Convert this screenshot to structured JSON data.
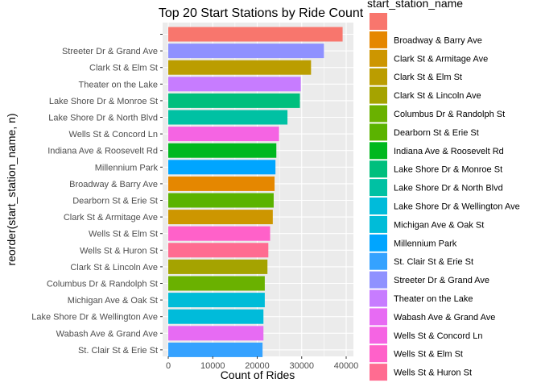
{
  "chart_data": {
    "type": "bar",
    "orientation": "horizontal",
    "title": "Top 20 Start Stations by Ride Count",
    "xlabel": "Count of Rides",
    "ylabel": "reorder(start_station_name, n)",
    "xlim": [
      0,
      40000
    ],
    "xticks": [
      0,
      10000,
      20000,
      30000,
      40000
    ],
    "grid": true,
    "legend": {
      "title": "start_station_name",
      "position": "right"
    },
    "categories": [
      "",
      "Streeter Dr & Grand Ave",
      "Clark St & Elm St",
      "Theater on the Lake",
      "Lake Shore Dr & Monroe St",
      "Lake Shore Dr & North Blvd",
      "Wells St & Concord Ln",
      "Indiana Ave & Roosevelt Rd",
      "Millennium Park",
      "Broadway & Barry Ave",
      "Dearborn St & Erie St",
      "Clark St & Armitage Ave",
      "Wells St & Elm St",
      "Wells St & Huron St",
      "Clark St & Lincoln Ave",
      "Columbus Dr & Randolph St",
      "Michigan Ave & Oak St",
      "Lake Shore Dr & Wellington Ave",
      "Wabash Ave & Grand Ave",
      "St. Clair St & Erie St"
    ],
    "values": [
      39200,
      35000,
      32100,
      29800,
      29600,
      26800,
      24900,
      24300,
      24100,
      23900,
      23700,
      23500,
      22900,
      22500,
      22300,
      21700,
      21700,
      21400,
      21400,
      21200
    ],
    "colors": [
      "#F8766D",
      "#8F91FF",
      "#BB9D00",
      "#C77CFF",
      "#00BF7D",
      "#00C1A3",
      "#F564E3",
      "#00B81F",
      "#00A5FF",
      "#E58700",
      "#5BB300",
      "#CD9600",
      "#FF61C9",
      "#FF6C91",
      "#A5A300",
      "#6AB100",
      "#00BCD8",
      "#00BBDA",
      "#E76BF3",
      "#35A2FF"
    ],
    "legend_entries": [
      {
        "label": "",
        "color": "#F8766D"
      },
      {
        "label": "Broadway & Barry Ave",
        "color": "#E58700"
      },
      {
        "label": "Clark St & Armitage Ave",
        "color": "#CD9600"
      },
      {
        "label": "Clark St & Elm St",
        "color": "#BB9D00"
      },
      {
        "label": "Clark St & Lincoln Ave",
        "color": "#A5A300"
      },
      {
        "label": "Columbus Dr & Randolph St",
        "color": "#6AB100"
      },
      {
        "label": "Dearborn St & Erie St",
        "color": "#5BB300"
      },
      {
        "label": "Indiana Ave & Roosevelt Rd",
        "color": "#00B81F"
      },
      {
        "label": "Lake Shore Dr & Monroe St",
        "color": "#00BF7D"
      },
      {
        "label": "Lake Shore Dr & North Blvd",
        "color": "#00C1A3"
      },
      {
        "label": "Lake Shore Dr & Wellington Ave",
        "color": "#00BBDA"
      },
      {
        "label": "Michigan Ave & Oak St",
        "color": "#00BCD8"
      },
      {
        "label": "Millennium Park",
        "color": "#00A5FF"
      },
      {
        "label": "St. Clair St & Erie St",
        "color": "#35A2FF"
      },
      {
        "label": "Streeter Dr & Grand Ave",
        "color": "#8F91FF"
      },
      {
        "label": "Theater on the Lake",
        "color": "#C77CFF"
      },
      {
        "label": "Wabash Ave & Grand Ave",
        "color": "#E76BF3"
      },
      {
        "label": "Wells St & Concord Ln",
        "color": "#F564E3"
      },
      {
        "label": "Wells St & Elm St",
        "color": "#FF61C9"
      },
      {
        "label": "Wells St & Huron St",
        "color": "#FF6C91"
      }
    ]
  }
}
